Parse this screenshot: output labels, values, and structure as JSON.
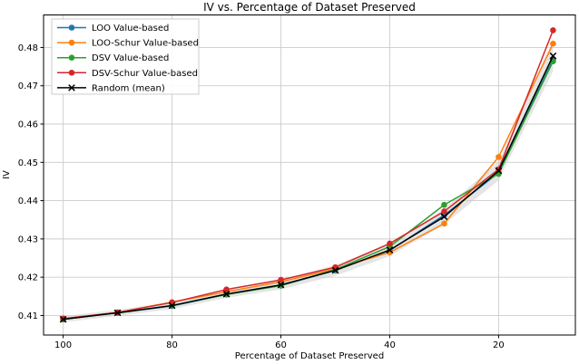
{
  "chart_data": {
    "type": "line",
    "title": "IV vs. Percentage of Dataset Preserved",
    "xlabel": "Percentage of Dataset Preserved",
    "ylabel": "IV",
    "x_axis_reversed": true,
    "xlim": [
      103.6,
      5.9
    ],
    "ylim": [
      0.4049,
      0.4885
    ],
    "xticks": [
      100,
      80,
      60,
      40,
      20
    ],
    "yticks": [
      0.41,
      0.42,
      0.43,
      0.44,
      0.45,
      0.46,
      0.47,
      0.48
    ],
    "grid": true,
    "legend_position": "upper-left",
    "x": [
      100,
      90,
      80,
      70,
      60,
      50,
      40,
      30,
      20,
      10
    ],
    "series": [
      {
        "name": "LOO Value-based",
        "color": "#1f77b4",
        "marker": "circle",
        "values": [
          0.409,
          0.4107,
          0.4125,
          0.4155,
          0.4178,
          0.4218,
          0.427,
          0.4362,
          0.4473,
          0.4768
        ]
      },
      {
        "name": "LOO-Schur Value-based",
        "color": "#ff7f0e",
        "marker": "circle",
        "values": [
          0.409,
          0.4108,
          0.4135,
          0.4162,
          0.4188,
          0.4222,
          0.4265,
          0.434,
          0.4514,
          0.481
        ]
      },
      {
        "name": "DSV Value-based",
        "color": "#2ca02c",
        "marker": "circle",
        "values": [
          0.409,
          0.4107,
          0.4126,
          0.4155,
          0.4178,
          0.422,
          0.428,
          0.4389,
          0.447,
          0.4764
        ]
      },
      {
        "name": "DSV-Schur Value-based",
        "color": "#d62728",
        "marker": "circle",
        "values": [
          0.4092,
          0.4108,
          0.4134,
          0.4168,
          0.4193,
          0.4226,
          0.4288,
          0.4372,
          0.4482,
          0.4845
        ]
      },
      {
        "name": "Random (mean)",
        "color": "#000000",
        "marker": "x",
        "values": [
          0.409,
          0.4107,
          0.4126,
          0.4156,
          0.418,
          0.4218,
          0.4271,
          0.4358,
          0.4478,
          0.4778
        ],
        "band": {
          "color": "#aaaaaa",
          "opacity": 0.3,
          "lower": [
            0.4082,
            0.4099,
            0.4117,
            0.4146,
            0.4168,
            0.4204,
            0.4255,
            0.4338,
            0.4453,
            0.4738
          ],
          "upper": [
            0.4098,
            0.4115,
            0.4135,
            0.4166,
            0.4192,
            0.4232,
            0.4287,
            0.4378,
            0.4503,
            0.4818
          ]
        }
      }
    ],
    "colors": {
      "background": "#ffffff",
      "grid": "#cccccc",
      "spine": "#000000",
      "legend_border": "#cccccc",
      "legend_background": "#ffffff"
    }
  }
}
